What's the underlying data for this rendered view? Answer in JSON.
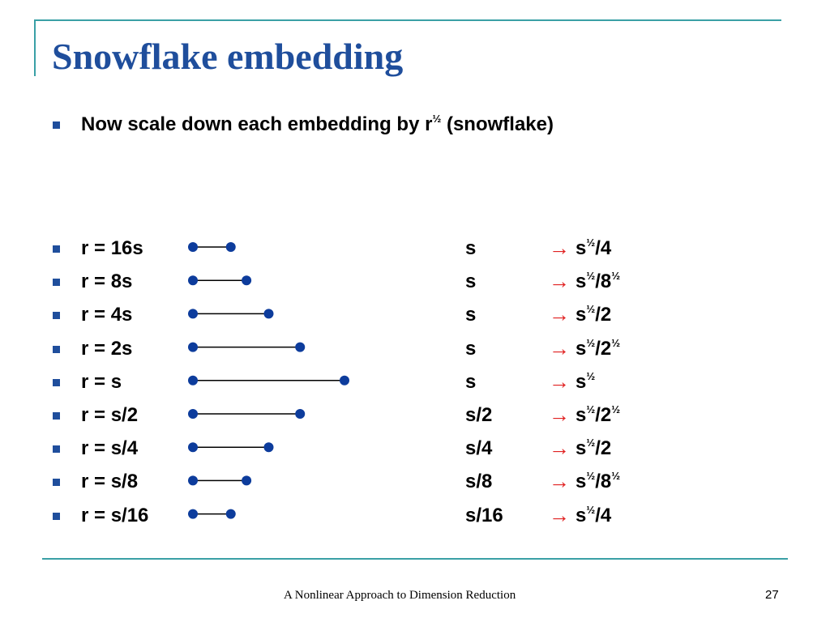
{
  "slide": {
    "title": "Snowflake embedding",
    "intro": {
      "prefix": "Now scale down each embedding by r",
      "exp": "½",
      "suffix": " (snowflake)"
    },
    "footer": "A Nonlinear Approach to Dimension Reduction",
    "page_number": "27",
    "arrow_glyph": "→",
    "colors": {
      "title": "#1f4e9c",
      "rule": "#3aa0a6",
      "arrow": "#e02020",
      "dot": "#0d3c9c"
    }
  },
  "rows": [
    {
      "r": "r = 16s",
      "dist": "s",
      "res": [
        {
          "t": "s"
        },
        {
          "sup": "½"
        },
        {
          "t": "/4"
        }
      ]
    },
    {
      "r": "r = 8s",
      "dist": "s",
      "res": [
        {
          "t": "s"
        },
        {
          "sup": "½"
        },
        {
          "t": "/8"
        },
        {
          "sup": "½"
        }
      ]
    },
    {
      "r": "r = 4s",
      "dist": "s",
      "res": [
        {
          "t": "s"
        },
        {
          "sup": "½"
        },
        {
          "t": "/2"
        }
      ]
    },
    {
      "r": "r = 2s",
      "dist": "s",
      "res": [
        {
          "t": "s"
        },
        {
          "sup": "½"
        },
        {
          "t": "/2"
        },
        {
          "sup": "½"
        }
      ]
    },
    {
      "r": "r = s",
      "dist": "s",
      "res": [
        {
          "t": "s"
        },
        {
          "sup": "½"
        }
      ]
    },
    {
      "r": "r = s/2",
      "dist": "s/2",
      "res": [
        {
          "t": "s"
        },
        {
          "sup": "½"
        },
        {
          "t": "/2"
        },
        {
          "sup": "½"
        }
      ]
    },
    {
      "r": "r = s/4",
      "dist": "s/4",
      "res": [
        {
          "t": "s"
        },
        {
          "sup": "½"
        },
        {
          "t": "/2"
        }
      ]
    },
    {
      "r": "r = s/8",
      "dist": "s/8",
      "res": [
        {
          "t": "s"
        },
        {
          "sup": "½"
        },
        {
          "t": "/8"
        },
        {
          "sup": "½"
        }
      ]
    },
    {
      "r": "r = s/16",
      "dist": "s/16",
      "res": [
        {
          "t": "s"
        },
        {
          "sup": "½"
        },
        {
          "t": "/4"
        }
      ]
    }
  ],
  "segment_lengths": [
    0.25,
    0.3536,
    0.5,
    0.7071,
    1,
    0.7071,
    0.5,
    0.3536,
    0.25
  ]
}
